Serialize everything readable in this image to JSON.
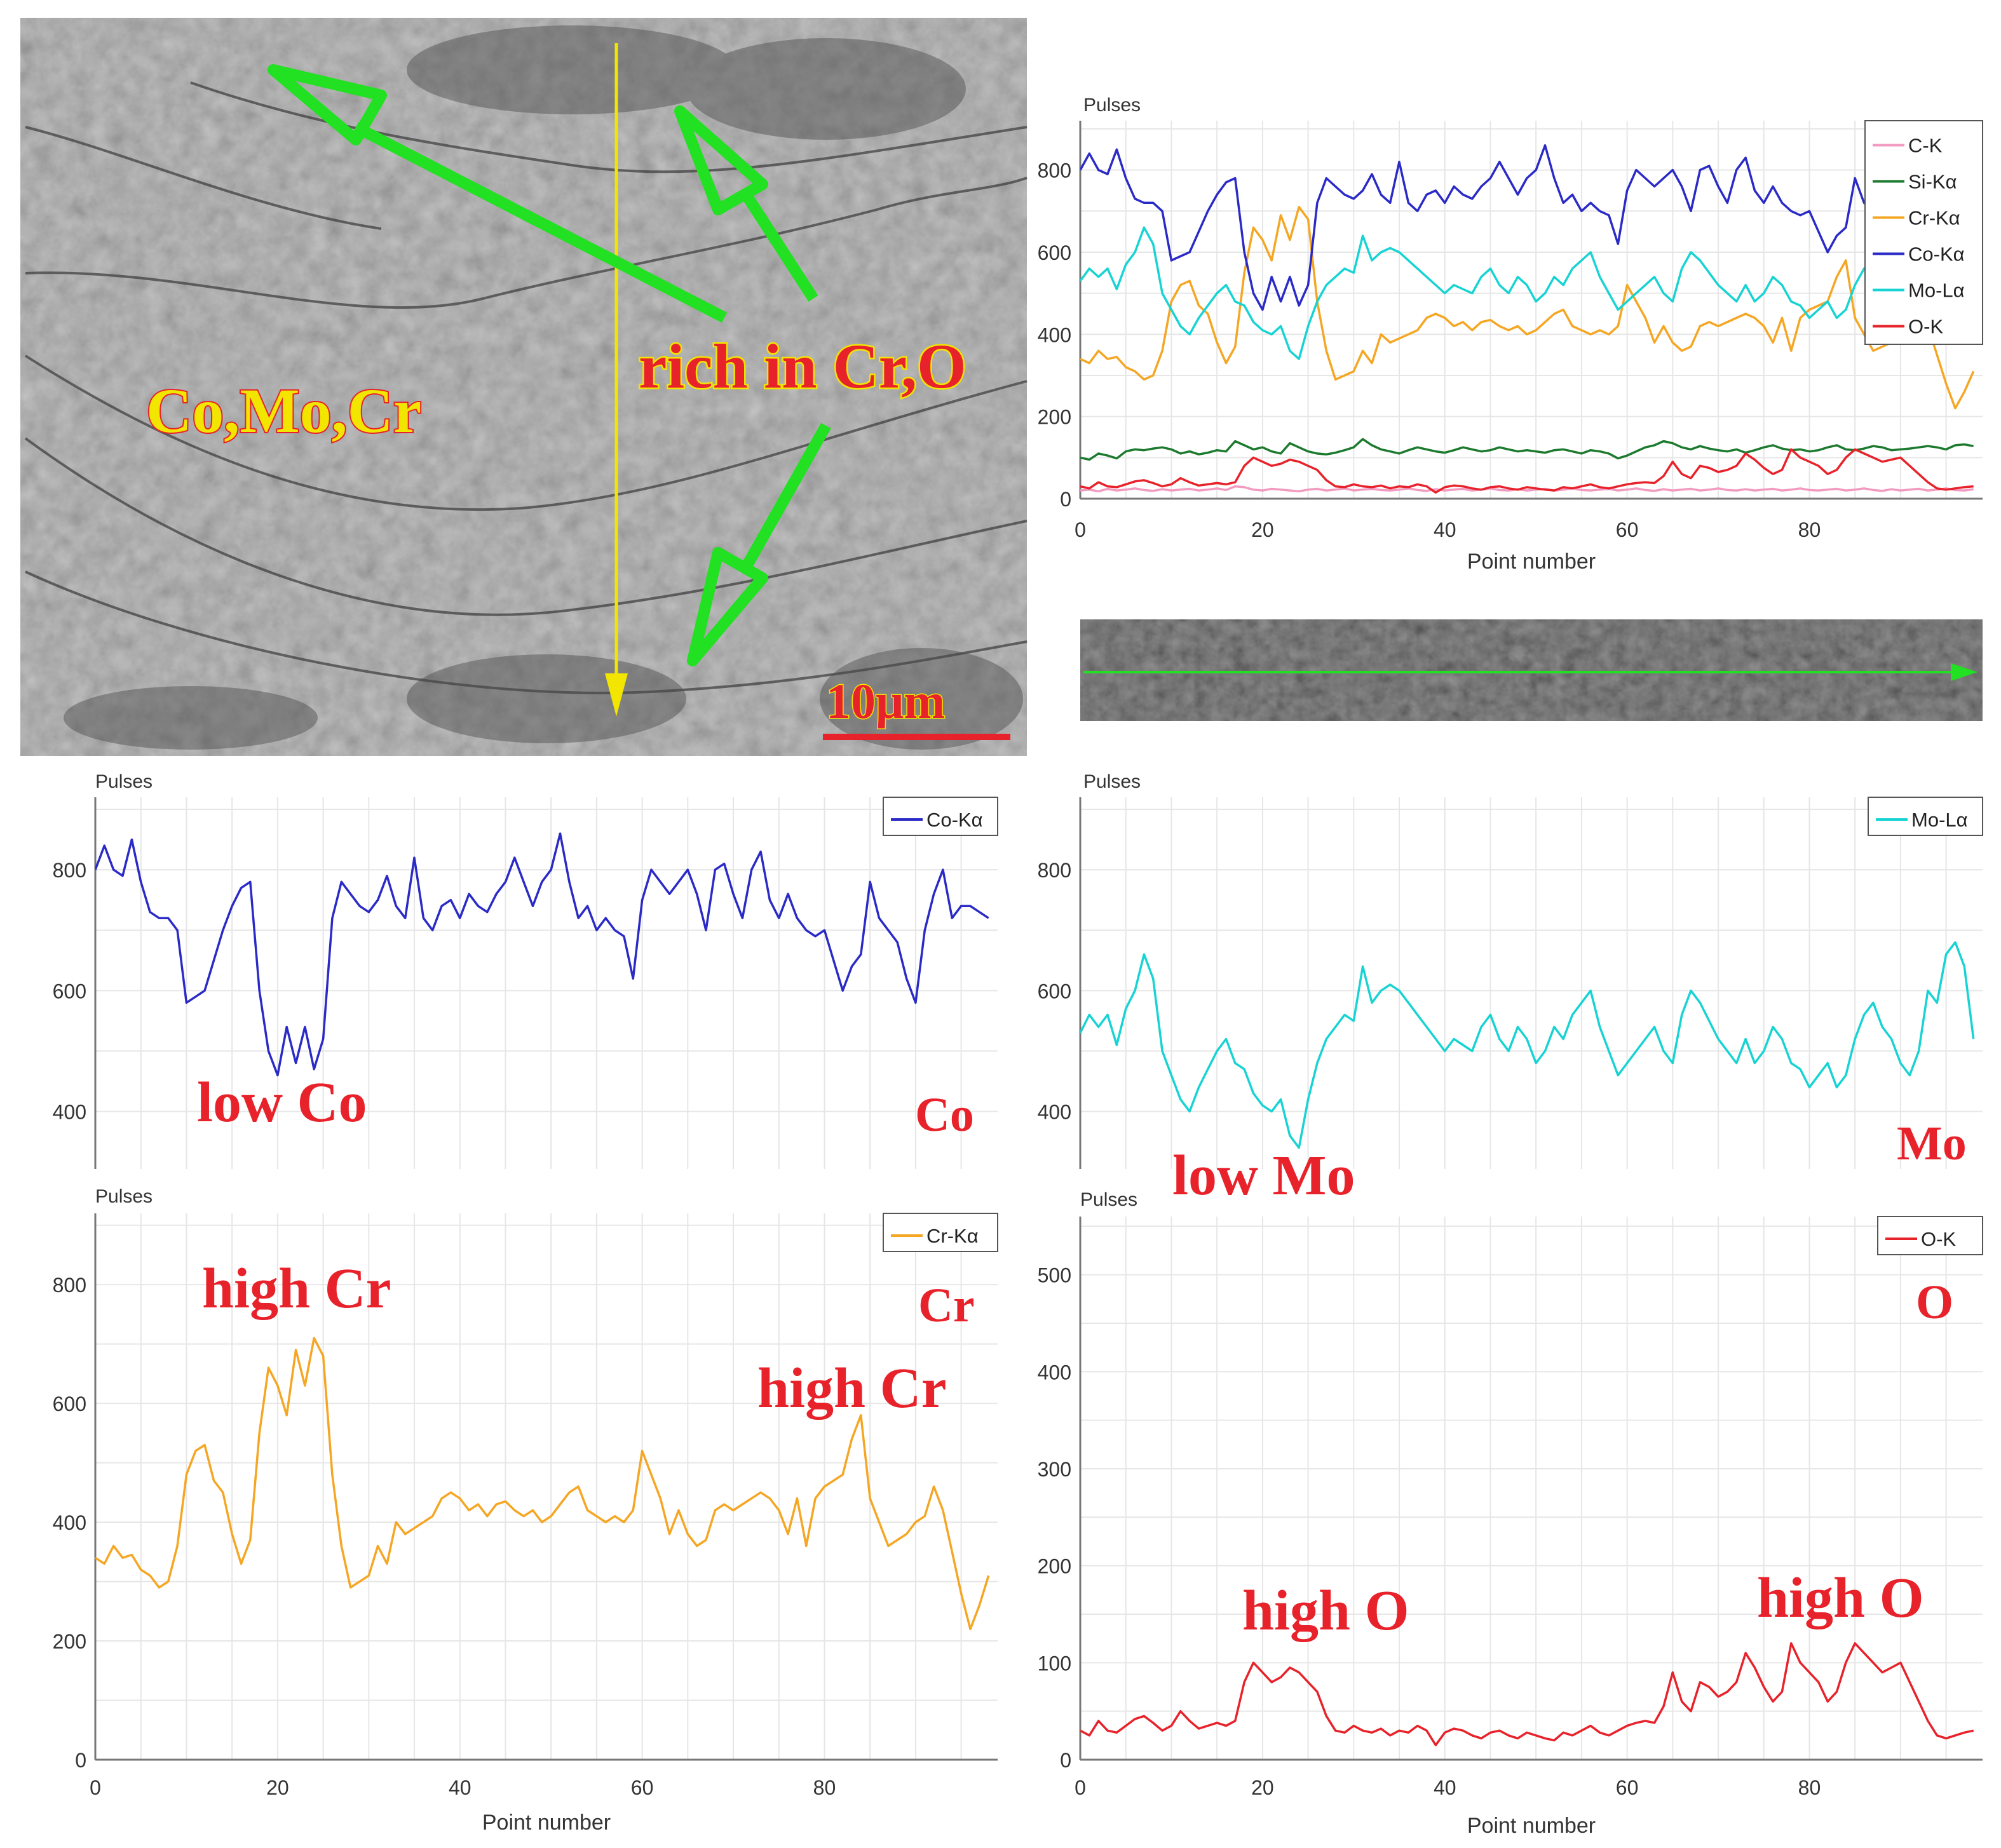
{
  "micrograph": {
    "label_composition": "Co,Mo,Cr",
    "label_rich": "rich in Cr,O",
    "scale_bar": "10μm"
  },
  "colors": {
    "C-K": "#f29bc0",
    "Si-Kα": "#1c7a2e",
    "Cr-Kα": "#f5a623",
    "Co-Kα": "#2a2ac7",
    "Mo-Lα": "#17d3d3",
    "O-K": "#e8222a",
    "annotation": "#e8222a",
    "arrow": "#22e022",
    "linescan": "#f2e500"
  },
  "chart_data": [
    {
      "id": "combined",
      "type": "line",
      "ylabel": "Pulses",
      "xlabel": "Point number",
      "xlim": [
        0,
        99
      ],
      "ylim": [
        0,
        920
      ],
      "xticks": [
        0,
        20,
        40,
        60,
        80
      ],
      "yticks": [
        0,
        200,
        400,
        600,
        800
      ],
      "legend": [
        "C-K",
        "Si-Kα",
        "Cr-Kα",
        "Co-Kα",
        "Mo-Lα",
        "O-K"
      ],
      "series": [
        {
          "name": "C-K",
          "values": [
            20,
            22,
            18,
            24,
            20,
            22,
            25,
            21,
            19,
            23,
            20,
            22,
            24,
            20,
            22,
            25,
            21,
            30,
            28,
            22,
            20,
            24,
            22,
            20,
            18,
            22,
            24,
            20,
            22,
            25,
            20,
            22,
            24,
            21,
            20,
            22,
            25,
            21,
            19,
            23,
            20,
            22,
            24,
            20,
            22,
            25,
            21,
            20,
            23,
            20,
            22,
            24,
            20,
            22,
            25,
            21,
            20,
            22,
            24,
            20,
            22,
            25,
            21,
            19,
            23,
            20,
            22,
            24,
            20,
            22,
            25,
            21,
            20,
            23,
            20,
            22,
            24,
            20,
            22,
            25,
            21,
            20,
            22,
            24,
            20,
            22,
            25,
            21,
            19,
            23,
            20,
            22,
            24,
            20,
            22,
            25,
            21,
            20,
            23
          ]
        },
        {
          "name": "Si-Kα",
          "values": [
            100,
            95,
            110,
            105,
            98,
            115,
            120,
            118,
            122,
            125,
            120,
            110,
            115,
            108,
            112,
            118,
            115,
            140,
            130,
            120,
            125,
            115,
            110,
            135,
            125,
            115,
            110,
            108,
            112,
            118,
            125,
            145,
            130,
            120,
            115,
            110,
            118,
            125,
            120,
            115,
            112,
            118,
            125,
            120,
            115,
            118,
            125,
            120,
            115,
            118,
            115,
            112,
            118,
            120,
            115,
            110,
            118,
            115,
            110,
            98,
            105,
            115,
            125,
            130,
            140,
            135,
            125,
            120,
            128,
            122,
            118,
            115,
            120,
            112,
            118,
            125,
            130,
            122,
            118,
            120,
            115,
            118,
            125,
            130,
            120,
            118,
            122,
            128,
            125,
            118,
            120,
            122,
            125,
            128,
            125,
            120,
            130,
            132,
            128
          ]
        },
        {
          "name": "Cr-Kα",
          "values": [
            340,
            330,
            360,
            340,
            345,
            320,
            310,
            290,
            300,
            360,
            480,
            520,
            530,
            470,
            450,
            380,
            330,
            370,
            550,
            660,
            630,
            580,
            690,
            630,
            710,
            680,
            480,
            360,
            290,
            300,
            310,
            360,
            330,
            400,
            380,
            390,
            400,
            410,
            440,
            450,
            440,
            420,
            430,
            410,
            430,
            435,
            420,
            410,
            420,
            400,
            410,
            430,
            450,
            460,
            420,
            410,
            400,
            410,
            400,
            420,
            520,
            480,
            440,
            380,
            420,
            380,
            360,
            370,
            420,
            430,
            420,
            430,
            440,
            450,
            440,
            420,
            380,
            440,
            360,
            440,
            460,
            470,
            480,
            540,
            580,
            440,
            400,
            360,
            370,
            380,
            400,
            410,
            460,
            420,
            350,
            280,
            220,
            260,
            310
          ]
        },
        {
          "name": "Co-Kα",
          "values": [
            800,
            840,
            800,
            790,
            850,
            780,
            730,
            720,
            720,
            700,
            580,
            590,
            600,
            650,
            700,
            740,
            770,
            780,
            600,
            500,
            460,
            540,
            480,
            540,
            470,
            520,
            720,
            780,
            760,
            740,
            730,
            750,
            790,
            740,
            720,
            820,
            720,
            700,
            740,
            750,
            720,
            760,
            740,
            730,
            760,
            780,
            820,
            780,
            740,
            780,
            800,
            860,
            780,
            720,
            740,
            700,
            720,
            700,
            690,
            620,
            750,
            800,
            780,
            760,
            780,
            800,
            760,
            700,
            800,
            810,
            760,
            720,
            800,
            830,
            750,
            720,
            760,
            720,
            700,
            690,
            700,
            650,
            600,
            640,
            660,
            780,
            720,
            700,
            680,
            620,
            580,
            700,
            760,
            800,
            720,
            740,
            740,
            730,
            720
          ]
        },
        {
          "name": "Mo-Lα",
          "values": [
            530,
            560,
            540,
            560,
            510,
            570,
            600,
            660,
            620,
            500,
            460,
            420,
            400,
            440,
            470,
            500,
            520,
            480,
            470,
            430,
            410,
            400,
            420,
            360,
            340,
            420,
            480,
            520,
            540,
            560,
            550,
            640,
            580,
            600,
            610,
            600,
            580,
            560,
            540,
            520,
            500,
            520,
            510,
            500,
            540,
            560,
            520,
            500,
            540,
            520,
            480,
            500,
            540,
            520,
            560,
            580,
            600,
            540,
            500,
            460,
            480,
            500,
            520,
            540,
            500,
            480,
            560,
            600,
            580,
            550,
            520,
            500,
            480,
            520,
            480,
            500,
            540,
            520,
            480,
            470,
            440,
            460,
            480,
            440,
            460,
            520,
            560,
            580,
            540,
            520,
            480,
            460,
            500,
            600,
            580,
            660,
            680,
            640,
            520
          ]
        },
        {
          "name": "O-K",
          "values": [
            30,
            25,
            40,
            30,
            28,
            35,
            42,
            45,
            38,
            30,
            35,
            50,
            40,
            32,
            35,
            38,
            35,
            40,
            80,
            100,
            90,
            80,
            85,
            95,
            90,
            80,
            70,
            45,
            30,
            28,
            35,
            30,
            28,
            32,
            25,
            30,
            28,
            35,
            30,
            15,
            28,
            32,
            30,
            25,
            22,
            28,
            30,
            25,
            22,
            28,
            25,
            22,
            20,
            28,
            25,
            30,
            35,
            28,
            25,
            30,
            35,
            38,
            40,
            38,
            55,
            90,
            60,
            50,
            80,
            75,
            65,
            70,
            80,
            110,
            95,
            75,
            60,
            70,
            120,
            100,
            90,
            80,
            60,
            70,
            100,
            120,
            110,
            100,
            90,
            95,
            100,
            80,
            60,
            40,
            25,
            22,
            25,
            28,
            30
          ]
        }
      ]
    },
    {
      "id": "co",
      "type": "line",
      "ylabel": "Pulses",
      "xlabel": "",
      "xlim": [
        0,
        99
      ],
      "ylim": [
        305,
        920
      ],
      "yticks": [
        400,
        600,
        800
      ],
      "legend": [
        "Co-Kα"
      ],
      "series": [
        {
          "name": "Co-Kα",
          "ref": "Co-Kα"
        }
      ]
    },
    {
      "id": "mo",
      "type": "line",
      "ylabel": "Pulses",
      "xlabel": "",
      "xlim": [
        0,
        99
      ],
      "ylim": [
        305,
        920
      ],
      "yticks": [
        400,
        600,
        800
      ],
      "legend": [
        "Mo-Lα"
      ],
      "series": [
        {
          "name": "Mo-Lα",
          "ref": "Mo-Lα"
        }
      ]
    },
    {
      "id": "cr",
      "type": "line",
      "ylabel": "Pulses",
      "xlabel": "Point number",
      "xlim": [
        0,
        99
      ],
      "ylim": [
        0,
        920
      ],
      "xticks": [
        0,
        20,
        40,
        60,
        80
      ],
      "yticks": [
        0,
        200,
        400,
        600,
        800
      ],
      "legend": [
        "Cr-Kα"
      ],
      "series": [
        {
          "name": "Cr-Kα",
          "ref": "Cr-Kα"
        }
      ]
    },
    {
      "id": "o",
      "type": "line",
      "ylabel": "Pulses",
      "xlabel": "Point number",
      "xlim": [
        0,
        99
      ],
      "ylim": [
        0,
        560
      ],
      "xticks": [
        0,
        20,
        40,
        60,
        80
      ],
      "yticks": [
        0,
        100,
        200,
        300,
        400,
        500
      ],
      "legend": [
        "O-K"
      ],
      "series": [
        {
          "name": "O-K",
          "ref": "O-K"
        }
      ]
    }
  ],
  "annotations": {
    "co_low": "low Co",
    "co_tag": "Co",
    "mo_low": "low Mo",
    "mo_tag": "Mo",
    "cr_high_1": "high Cr",
    "cr_high_2": "high Cr",
    "cr_tag": "Cr",
    "o_high_1": "high O",
    "o_high_2": "high O",
    "o_tag": "O"
  }
}
